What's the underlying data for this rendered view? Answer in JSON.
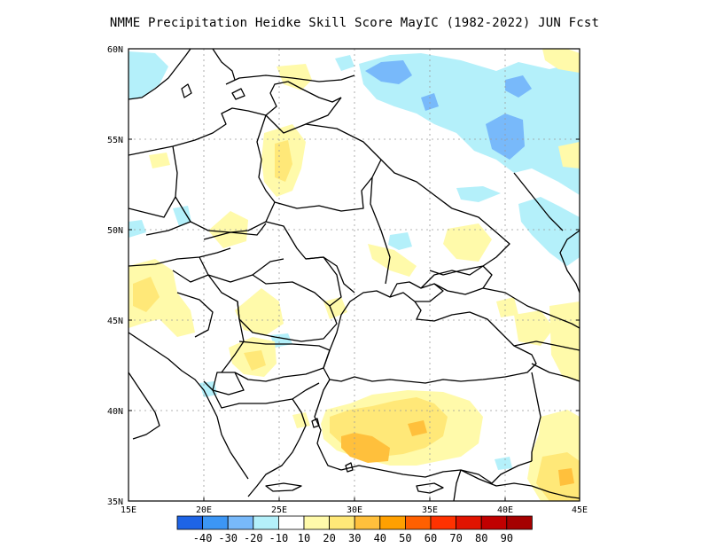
{
  "title": "NMME  Precipitation Heidke Skill Score MayIC (1982-2022) JUN Fcst",
  "lat_labels": [
    "60N",
    "55N",
    "50N",
    "45N",
    "40N",
    "35N"
  ],
  "lon_labels": [
    "15E",
    "20E",
    "25E",
    "30E",
    "35E",
    "40E",
    "45E"
  ],
  "colorbar": {
    "labels": [
      "-40",
      "-30",
      "-20",
      "-10",
      "10",
      "20",
      "30",
      "40",
      "50",
      "60",
      "70",
      "80",
      "90"
    ],
    "colors": [
      "#1e64e6",
      "#3c96f5",
      "#78b9fa",
      "#b4f0fa",
      "#ffffff",
      "#fffaaa",
      "#ffe878",
      "#ffc03c",
      "#ffa000",
      "#ff6000",
      "#ff3200",
      "#e11400",
      "#c00000",
      "#a50000"
    ]
  },
  "colors": {
    "neg_light": "#b4f0fa",
    "neg_mid": "#78b9fa",
    "pos_light": "#fffaaa",
    "pos_mid": "#ffe878",
    "pos_strong": "#ffc03c"
  }
}
